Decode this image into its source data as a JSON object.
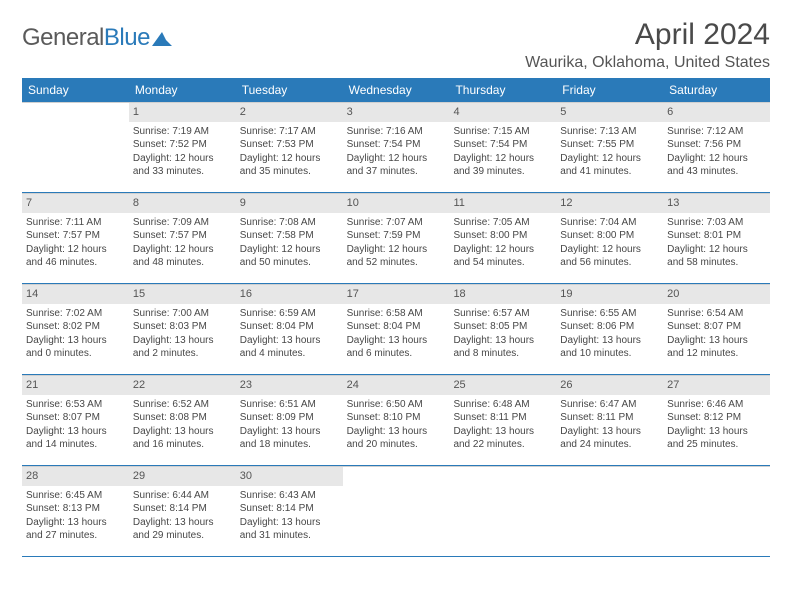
{
  "logo": {
    "word1": "General",
    "word2": "Blue",
    "mark_color": "#2a7ab9",
    "text_color": "#5a5a5a"
  },
  "title": "April 2024",
  "location": "Waurika, Oklahoma, United States",
  "weekdays": [
    "Sunday",
    "Monday",
    "Tuesday",
    "Wednesday",
    "Thursday",
    "Friday",
    "Saturday"
  ],
  "colors": {
    "header_bg": "#2a7ab9",
    "header_text": "#ffffff",
    "daynum_bg": "#e7e7e7",
    "daynum_text": "#555555",
    "body_text": "#474747",
    "week_divider": "#2a7ab9",
    "cell_divider": "#d0d0d0"
  },
  "typography": {
    "month_title_size": 30,
    "location_size": 16,
    "weekday_size": 12,
    "daynum_size": 11,
    "body_size": 10
  },
  "first_weekday_index": 1,
  "days": [
    {
      "n": 1,
      "sr": "7:19 AM",
      "ss": "7:52 PM",
      "dl": "12 hours and 33 minutes."
    },
    {
      "n": 2,
      "sr": "7:17 AM",
      "ss": "7:53 PM",
      "dl": "12 hours and 35 minutes."
    },
    {
      "n": 3,
      "sr": "7:16 AM",
      "ss": "7:54 PM",
      "dl": "12 hours and 37 minutes."
    },
    {
      "n": 4,
      "sr": "7:15 AM",
      "ss": "7:54 PM",
      "dl": "12 hours and 39 minutes."
    },
    {
      "n": 5,
      "sr": "7:13 AM",
      "ss": "7:55 PM",
      "dl": "12 hours and 41 minutes."
    },
    {
      "n": 6,
      "sr": "7:12 AM",
      "ss": "7:56 PM",
      "dl": "12 hours and 43 minutes."
    },
    {
      "n": 7,
      "sr": "7:11 AM",
      "ss": "7:57 PM",
      "dl": "12 hours and 46 minutes."
    },
    {
      "n": 8,
      "sr": "7:09 AM",
      "ss": "7:57 PM",
      "dl": "12 hours and 48 minutes."
    },
    {
      "n": 9,
      "sr": "7:08 AM",
      "ss": "7:58 PM",
      "dl": "12 hours and 50 minutes."
    },
    {
      "n": 10,
      "sr": "7:07 AM",
      "ss": "7:59 PM",
      "dl": "12 hours and 52 minutes."
    },
    {
      "n": 11,
      "sr": "7:05 AM",
      "ss": "8:00 PM",
      "dl": "12 hours and 54 minutes."
    },
    {
      "n": 12,
      "sr": "7:04 AM",
      "ss": "8:00 PM",
      "dl": "12 hours and 56 minutes."
    },
    {
      "n": 13,
      "sr": "7:03 AM",
      "ss": "8:01 PM",
      "dl": "12 hours and 58 minutes."
    },
    {
      "n": 14,
      "sr": "7:02 AM",
      "ss": "8:02 PM",
      "dl": "13 hours and 0 minutes."
    },
    {
      "n": 15,
      "sr": "7:00 AM",
      "ss": "8:03 PM",
      "dl": "13 hours and 2 minutes."
    },
    {
      "n": 16,
      "sr": "6:59 AM",
      "ss": "8:04 PM",
      "dl": "13 hours and 4 minutes."
    },
    {
      "n": 17,
      "sr": "6:58 AM",
      "ss": "8:04 PM",
      "dl": "13 hours and 6 minutes."
    },
    {
      "n": 18,
      "sr": "6:57 AM",
      "ss": "8:05 PM",
      "dl": "13 hours and 8 minutes."
    },
    {
      "n": 19,
      "sr": "6:55 AM",
      "ss": "8:06 PM",
      "dl": "13 hours and 10 minutes."
    },
    {
      "n": 20,
      "sr": "6:54 AM",
      "ss": "8:07 PM",
      "dl": "13 hours and 12 minutes."
    },
    {
      "n": 21,
      "sr": "6:53 AM",
      "ss": "8:07 PM",
      "dl": "13 hours and 14 minutes."
    },
    {
      "n": 22,
      "sr": "6:52 AM",
      "ss": "8:08 PM",
      "dl": "13 hours and 16 minutes."
    },
    {
      "n": 23,
      "sr": "6:51 AM",
      "ss": "8:09 PM",
      "dl": "13 hours and 18 minutes."
    },
    {
      "n": 24,
      "sr": "6:50 AM",
      "ss": "8:10 PM",
      "dl": "13 hours and 20 minutes."
    },
    {
      "n": 25,
      "sr": "6:48 AM",
      "ss": "8:11 PM",
      "dl": "13 hours and 22 minutes."
    },
    {
      "n": 26,
      "sr": "6:47 AM",
      "ss": "8:11 PM",
      "dl": "13 hours and 24 minutes."
    },
    {
      "n": 27,
      "sr": "6:46 AM",
      "ss": "8:12 PM",
      "dl": "13 hours and 25 minutes."
    },
    {
      "n": 28,
      "sr": "6:45 AM",
      "ss": "8:13 PM",
      "dl": "13 hours and 27 minutes."
    },
    {
      "n": 29,
      "sr": "6:44 AM",
      "ss": "8:14 PM",
      "dl": "13 hours and 29 minutes."
    },
    {
      "n": 30,
      "sr": "6:43 AM",
      "ss": "8:14 PM",
      "dl": "13 hours and 31 minutes."
    }
  ],
  "labels": {
    "sunrise": "Sunrise:",
    "sunset": "Sunset:",
    "daylight": "Daylight:"
  }
}
